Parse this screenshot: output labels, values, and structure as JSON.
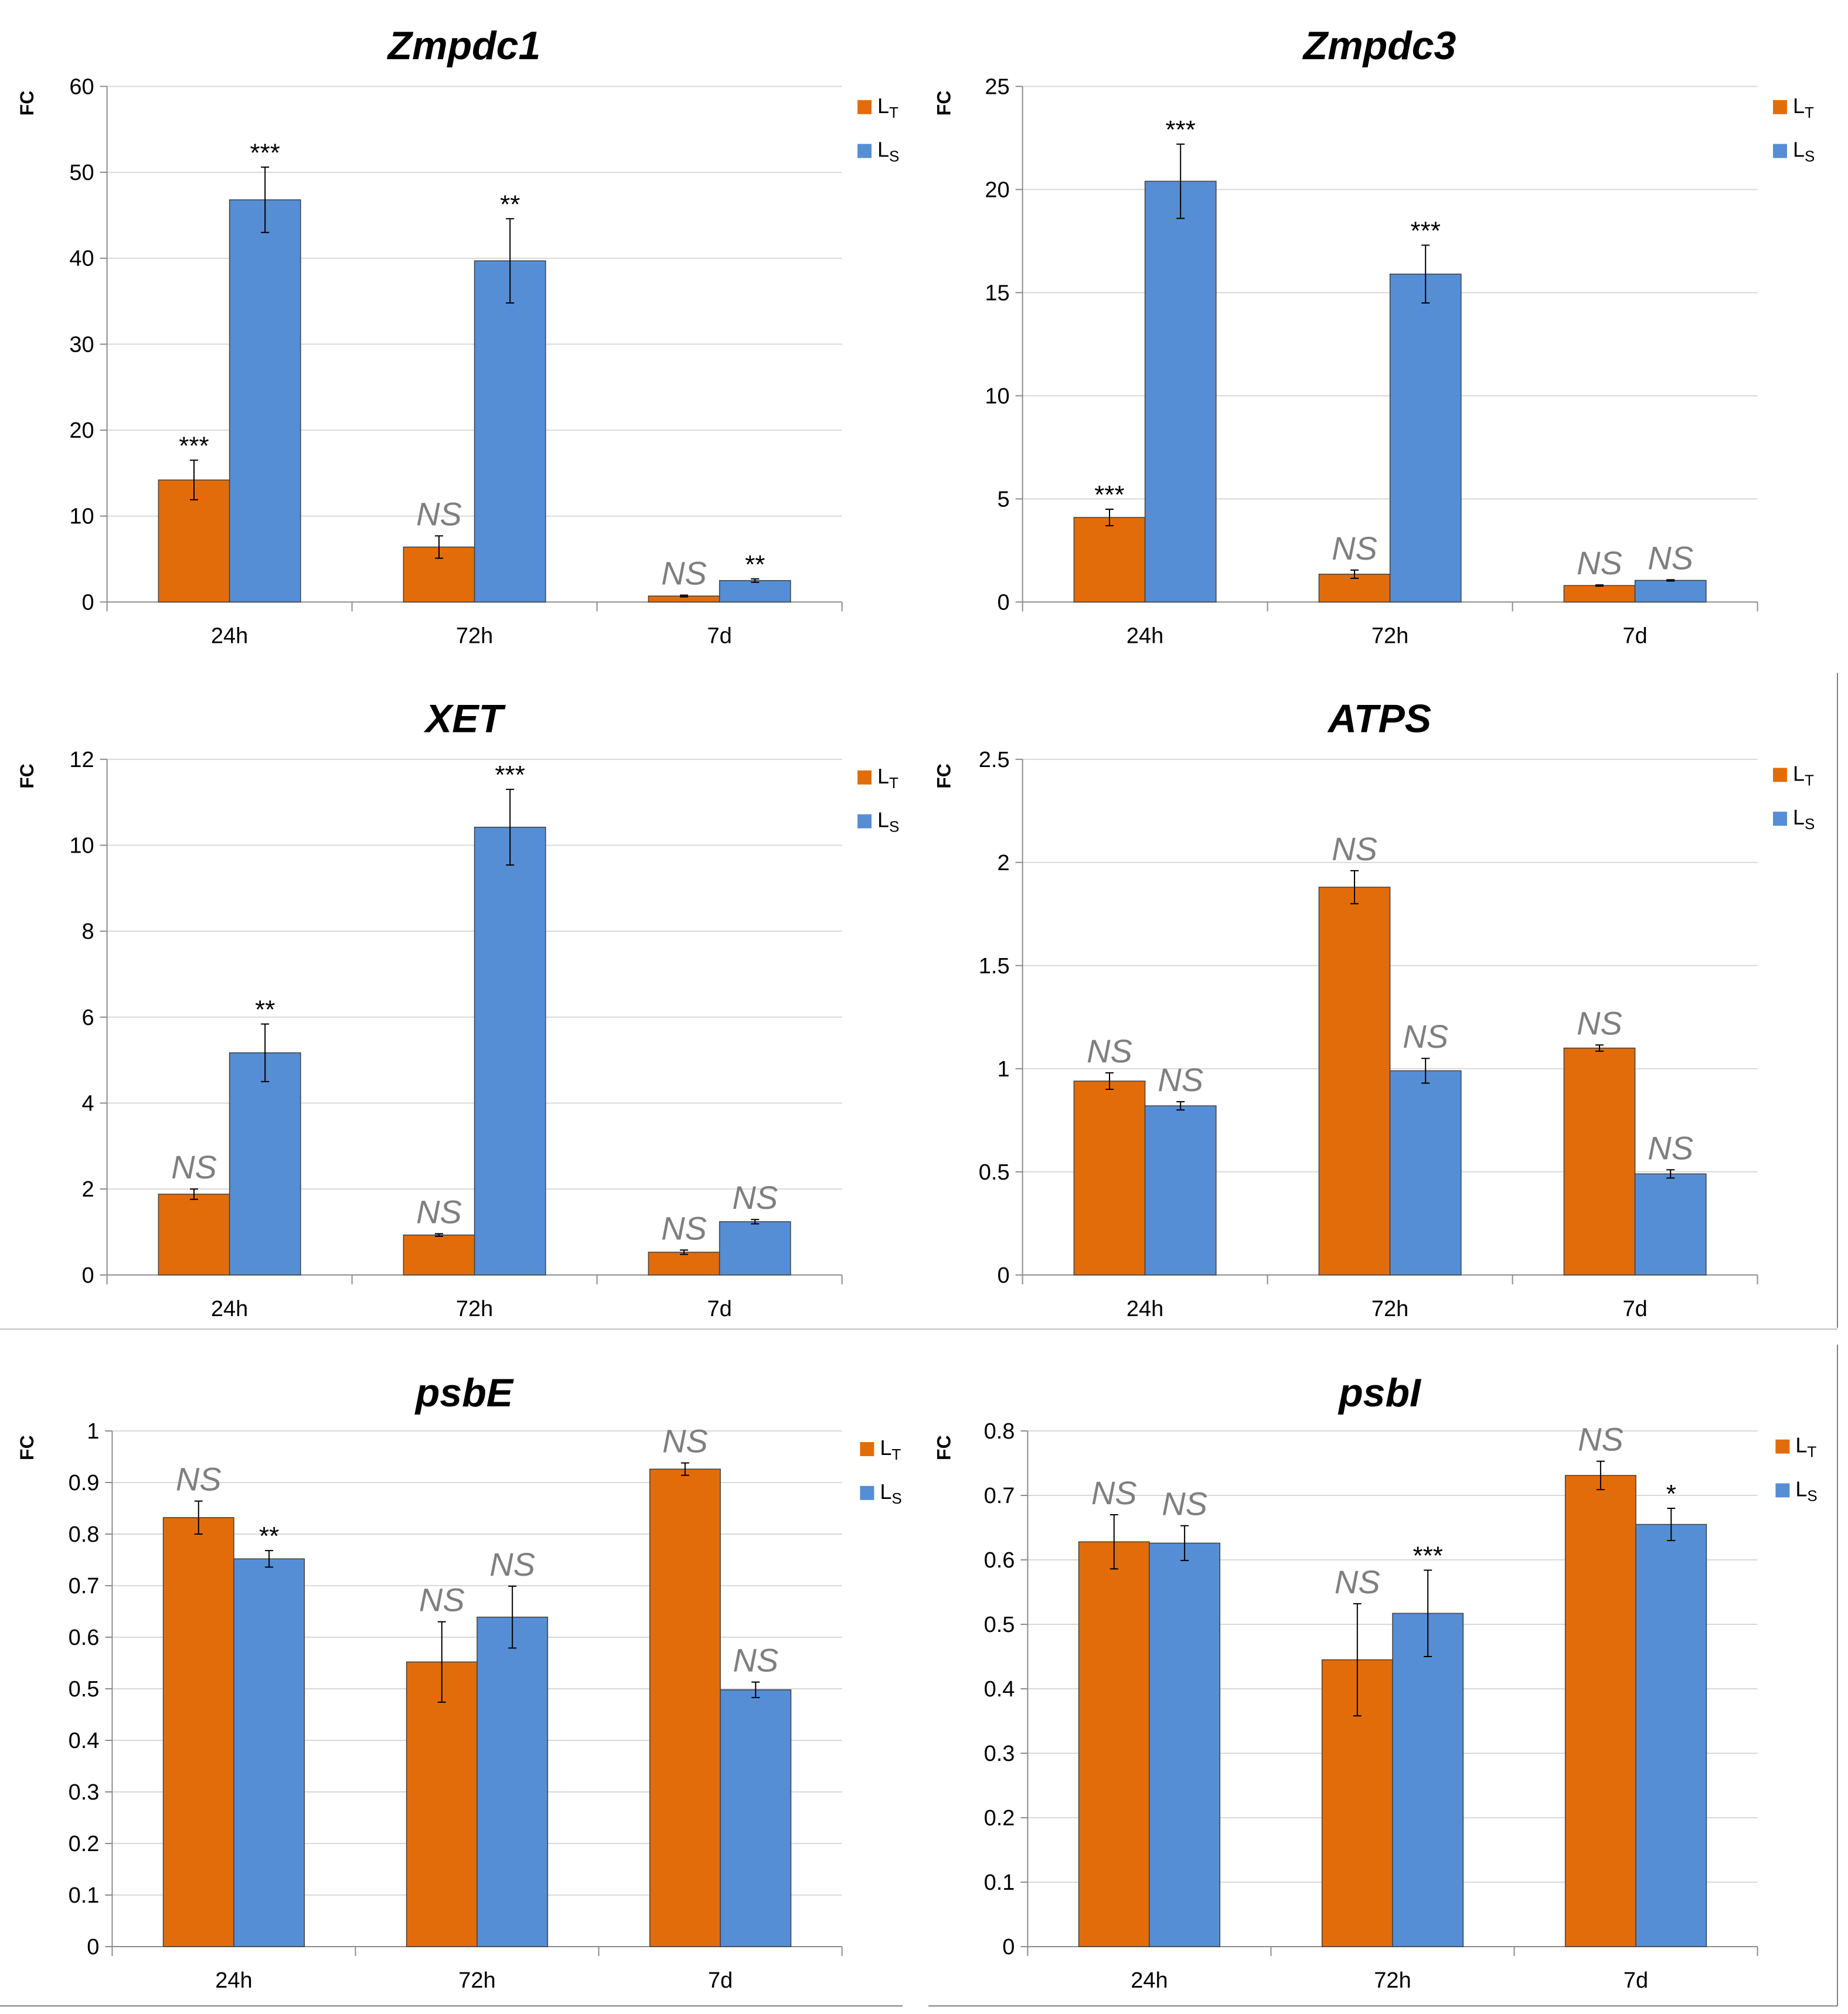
{
  "chart_data": [
    {
      "type": "bar",
      "title": "Zmpdc1",
      "ylabel": "FC",
      "ylim": [
        0,
        60
      ],
      "yticks": [
        "0",
        "10",
        "20",
        "30",
        "40",
        "50",
        "60"
      ],
      "categories": [
        "24h",
        "72h",
        "7d"
      ],
      "legend_position": "top-right",
      "series": [
        {
          "name": "L",
          "name_sub": "T",
          "color": "#E36C0A",
          "values": [
            14.2,
            6.4,
            0.7
          ],
          "errors": [
            2.3,
            1.3,
            0.1
          ],
          "labels": [
            "***",
            "NS",
            "NS"
          ]
        },
        {
          "name": "L",
          "name_sub": "S",
          "color": "#558ED5",
          "values": [
            46.8,
            39.7,
            2.5
          ],
          "errors": [
            3.8,
            4.9,
            0.2
          ],
          "labels": [
            "***",
            "**",
            "**"
          ]
        }
      ]
    },
    {
      "type": "bar",
      "title": "Zmpdc3",
      "ylabel": "FC",
      "ylim": [
        0,
        25
      ],
      "yticks": [
        "0",
        "5",
        "10",
        "15",
        "20",
        "25"
      ],
      "categories": [
        "24h",
        "72h",
        "7d"
      ],
      "legend_position": "top-right",
      "series": [
        {
          "name": "L",
          "name_sub": "T",
          "color": "#E36C0A",
          "values": [
            4.1,
            1.35,
            0.8
          ],
          "errors": [
            0.4,
            0.2,
            0.03
          ],
          "labels": [
            "***",
            "NS",
            "NS"
          ]
        },
        {
          "name": "L",
          "name_sub": "S",
          "color": "#558ED5",
          "values": [
            20.4,
            15.9,
            1.05
          ],
          "errors": [
            1.8,
            1.4,
            0.03
          ],
          "labels": [
            "***",
            "***",
            "NS"
          ]
        }
      ]
    },
    {
      "type": "bar",
      "title": "XET",
      "ylabel": "FC",
      "ylim": [
        0,
        12
      ],
      "yticks": [
        "0",
        "2",
        "4",
        "6",
        "8",
        "10",
        "12"
      ],
      "categories": [
        "24h",
        "72h",
        "7d"
      ],
      "legend_position": "top-right",
      "series": [
        {
          "name": "L",
          "name_sub": "T",
          "color": "#E36C0A",
          "values": [
            1.88,
            0.93,
            0.53
          ],
          "errors": [
            0.12,
            0.03,
            0.05
          ],
          "labels": [
            "NS",
            "NS",
            "NS"
          ]
        },
        {
          "name": "L",
          "name_sub": "S",
          "color": "#558ED5",
          "values": [
            5.17,
            10.42,
            1.24
          ],
          "errors": [
            0.67,
            0.88,
            0.05
          ],
          "labels": [
            "**",
            "***",
            "NS"
          ]
        }
      ]
    },
    {
      "type": "bar",
      "title": "ATPS",
      "ylabel": "FC",
      "ylim": [
        0,
        2.5
      ],
      "yticks": [
        "0",
        "0.5",
        "1",
        "1.5",
        "2",
        "2.5"
      ],
      "categories": [
        "24h",
        "72h",
        "7d"
      ],
      "legend_position": "top-right",
      "series": [
        {
          "name": "L",
          "name_sub": "T",
          "color": "#E36C0A",
          "values": [
            0.94,
            1.88,
            1.1
          ],
          "errors": [
            0.04,
            0.08,
            0.015
          ],
          "labels": [
            "NS",
            "NS",
            "NS"
          ]
        },
        {
          "name": "L",
          "name_sub": "S",
          "color": "#558ED5",
          "values": [
            0.82,
            0.99,
            0.49
          ],
          "errors": [
            0.02,
            0.06,
            0.02
          ],
          "labels": [
            "NS",
            "NS",
            "NS"
          ]
        }
      ]
    },
    {
      "type": "bar",
      "title": "psbE",
      "ylabel": "FC",
      "ylim": [
        0,
        1
      ],
      "yticks": [
        "0",
        "0.1",
        "0.2",
        "0.3",
        "0.4",
        "0.5",
        "0.6",
        "0.7",
        "0.8",
        "0.9",
        "1"
      ],
      "categories": [
        "24h",
        "72h",
        "7d"
      ],
      "legend_position": "top-right",
      "series": [
        {
          "name": "L",
          "name_sub": "T",
          "color": "#E36C0A",
          "values": [
            0.832,
            0.552,
            0.926
          ],
          "errors": [
            0.032,
            0.078,
            0.012
          ],
          "labels": [
            "NS",
            "NS",
            "NS"
          ]
        },
        {
          "name": "L",
          "name_sub": "S",
          "color": "#558ED5",
          "values": [
            0.752,
            0.639,
            0.498
          ],
          "errors": [
            0.016,
            0.06,
            0.015
          ],
          "labels": [
            "**",
            "NS",
            "NS"
          ]
        }
      ]
    },
    {
      "type": "bar",
      "title": "psbI",
      "ylabel": "FC",
      "ylim": [
        0,
        0.8
      ],
      "yticks": [
        "0",
        "0.1",
        "0.2",
        "0.3",
        "0.4",
        "0.5",
        "0.6",
        "0.7",
        "0.8"
      ],
      "categories": [
        "24h",
        "72h",
        "7d"
      ],
      "legend_position": "top-right",
      "series": [
        {
          "name": "L",
          "name_sub": "T",
          "color": "#E36C0A",
          "values": [
            0.628,
            0.445,
            0.731
          ],
          "errors": [
            0.042,
            0.087,
            0.022
          ],
          "labels": [
            "NS",
            "NS",
            "NS"
          ]
        },
        {
          "name": "L",
          "name_sub": "S",
          "color": "#558ED5",
          "values": [
            0.626,
            0.517,
            0.655
          ],
          "errors": [
            0.027,
            0.067,
            0.025
          ],
          "labels": [
            "NS",
            "***",
            "*"
          ]
        }
      ]
    }
  ]
}
